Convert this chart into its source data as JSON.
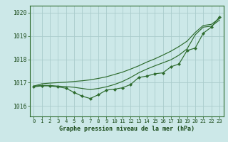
{
  "background_color": "#cce8e8",
  "grid_color": "#aacccc",
  "line_color": "#2d6b2d",
  "xlabel": "Graphe pression niveau de la mer (hPa)",
  "ylim": [
    1015.55,
    1020.3
  ],
  "xlim": [
    -0.5,
    23.5
  ],
  "yticks": [
    1016,
    1017,
    1018,
    1019,
    1020
  ],
  "xticks": [
    0,
    1,
    2,
    3,
    4,
    5,
    6,
    7,
    8,
    9,
    10,
    11,
    12,
    13,
    14,
    15,
    16,
    17,
    18,
    19,
    20,
    21,
    22,
    23
  ],
  "series_smooth_upper": [
    1016.85,
    1016.95,
    1016.98,
    1017.0,
    1017.02,
    1017.05,
    1017.08,
    1017.12,
    1017.18,
    1017.25,
    1017.35,
    1017.45,
    1017.58,
    1017.72,
    1017.88,
    1018.02,
    1018.18,
    1018.35,
    1018.55,
    1018.78,
    1019.15,
    1019.45,
    1019.5,
    1019.75
  ],
  "series_smooth_lower": [
    1016.85,
    1016.88,
    1016.88,
    1016.85,
    1016.83,
    1016.8,
    1016.75,
    1016.7,
    1016.75,
    1016.82,
    1016.92,
    1017.05,
    1017.22,
    1017.42,
    1017.58,
    1017.72,
    1017.85,
    1017.98,
    1018.18,
    1018.45,
    1019.05,
    1019.38,
    1019.42,
    1019.68
  ],
  "series_marked": [
    1016.82,
    1016.86,
    1016.86,
    1016.82,
    1016.76,
    1016.58,
    1016.42,
    1016.32,
    1016.48,
    1016.68,
    1016.72,
    1016.78,
    1016.92,
    1017.22,
    1017.28,
    1017.38,
    1017.42,
    1017.68,
    1017.8,
    1018.38,
    1018.48,
    1019.12,
    1019.38,
    1019.82
  ]
}
